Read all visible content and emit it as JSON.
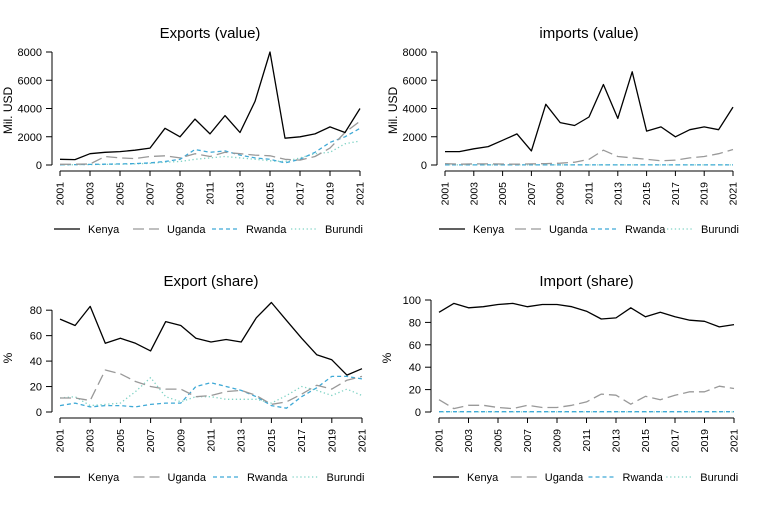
{
  "figure": {
    "legend_labels": [
      "Kenya",
      "Uganda",
      "Rwanda",
      "Burundi"
    ]
  },
  "series_styles": [
    {
      "name": "Kenya",
      "color": "#000000",
      "dash": "solid"
    },
    {
      "name": "Uganda",
      "color": "#999999",
      "dash": "longdash"
    },
    {
      "name": "Rwanda",
      "color": "#3fa9d6",
      "dash": "dashed"
    },
    {
      "name": "Burundi",
      "color": "#7fd3c5",
      "dash": "dotted"
    }
  ],
  "chart_data": [
    {
      "type": "line",
      "title": "Exports (value)",
      "xlabel": "",
      "ylabel": "Mil. USD",
      "x": [
        2001,
        2002,
        2003,
        2004,
        2005,
        2006,
        2007,
        2008,
        2009,
        2010,
        2011,
        2012,
        2013,
        2014,
        2015,
        2016,
        2017,
        2018,
        2019,
        2020,
        2021
      ],
      "xticks": [
        "2001",
        "2003",
        "2005",
        "2007",
        "2009",
        "2011",
        "2013",
        "2015",
        "2017",
        "2019",
        "2021"
      ],
      "yticks": [
        "0",
        "2000",
        "4000",
        "6000",
        "8000"
      ],
      "ylim": [
        0,
        8000
      ],
      "grid": false,
      "legend": "bottom",
      "series": [
        {
          "name": "Kenya",
          "values": [
            400,
            380,
            800,
            900,
            950,
            1050,
            1200,
            2600,
            2000,
            3250,
            2200,
            3500,
            2300,
            4500,
            8000,
            1900,
            2000,
            2200,
            2700,
            2300,
            4000
          ]
        },
        {
          "name": "Uganda",
          "values": [
            50,
            60,
            70,
            600,
            500,
            450,
            600,
            650,
            500,
            800,
            600,
            900,
            800,
            700,
            650,
            400,
            350,
            600,
            1200,
            2300,
            3100
          ]
        },
        {
          "name": "Rwanda",
          "values": [
            20,
            30,
            40,
            60,
            80,
            100,
            150,
            250,
            400,
            1100,
            900,
            1000,
            700,
            500,
            400,
            150,
            400,
            900,
            1600,
            2000,
            2600
          ]
        },
        {
          "name": "Burundi",
          "values": [
            10,
            20,
            30,
            40,
            60,
            80,
            120,
            200,
            250,
            400,
            500,
            600,
            500,
            400,
            300,
            250,
            500,
            800,
            900,
            1500,
            1700
          ]
        }
      ]
    },
    {
      "type": "line",
      "title": "imports (value)",
      "xlabel": "",
      "ylabel": "Mil. USD",
      "x": [
        2001,
        2002,
        2003,
        2004,
        2005,
        2006,
        2007,
        2008,
        2009,
        2010,
        2011,
        2012,
        2013,
        2014,
        2015,
        2016,
        2017,
        2018,
        2019,
        2020,
        2021
      ],
      "xticks": [
        "2001",
        "2003",
        "2005",
        "2007",
        "2009",
        "2011",
        "2013",
        "2015",
        "2017",
        "2019",
        "2021"
      ],
      "yticks": [
        "0",
        "2000",
        "4000",
        "6000",
        "8000"
      ],
      "ylim": [
        0,
        8000
      ],
      "grid": false,
      "legend": "bottom",
      "series": [
        {
          "name": "Kenya",
          "values": [
            950,
            950,
            1150,
            1300,
            1750,
            2200,
            1000,
            4300,
            3000,
            2800,
            3400,
            5700,
            3300,
            6600,
            2400,
            2700,
            2000,
            2500,
            2700,
            2500,
            4100
          ]
        },
        {
          "name": "Uganda",
          "values": [
            100,
            60,
            80,
            80,
            70,
            60,
            80,
            100,
            130,
            200,
            400,
            1050,
            600,
            500,
            400,
            300,
            350,
            500,
            600,
            800,
            1100
          ]
        },
        {
          "name": "Rwanda",
          "values": [
            10,
            10,
            10,
            10,
            10,
            10,
            10,
            10,
            10,
            10,
            10,
            10,
            10,
            10,
            10,
            10,
            10,
            10,
            10,
            10,
            10
          ]
        },
        {
          "name": "Burundi",
          "values": [
            5,
            5,
            5,
            5,
            5,
            5,
            5,
            5,
            5,
            5,
            5,
            5,
            5,
            5,
            5,
            5,
            5,
            5,
            5,
            5,
            5
          ]
        }
      ]
    },
    {
      "type": "line",
      "title": "Export (share)",
      "xlabel": "",
      "ylabel": "%",
      "x": [
        2001,
        2002,
        2003,
        2004,
        2005,
        2006,
        2007,
        2008,
        2009,
        2010,
        2011,
        2012,
        2013,
        2014,
        2015,
        2016,
        2017,
        2018,
        2019,
        2020,
        2021
      ],
      "xticks": [
        "2001",
        "2003",
        "2005",
        "2007",
        "2009",
        "2011",
        "2013",
        "2015",
        "2017",
        "2019",
        "2021"
      ],
      "yticks": [
        "0",
        "20",
        "40",
        "60",
        "80"
      ],
      "ylim": [
        0,
        88
      ],
      "grid": false,
      "legend": "bottom",
      "series": [
        {
          "name": "Kenya",
          "values": [
            73,
            68,
            83,
            54,
            58,
            54,
            48,
            71,
            68,
            58,
            55,
            57,
            55,
            74,
            86,
            72,
            58,
            45,
            41,
            29,
            34
          ]
        },
        {
          "name": "Uganda",
          "values": [
            11,
            11,
            9,
            33,
            30,
            24,
            20,
            18,
            18,
            12,
            13,
            16,
            17,
            13,
            6,
            8,
            14,
            21,
            18,
            25,
            28
          ]
        },
        {
          "name": "Rwanda",
          "values": [
            5,
            7,
            4,
            5,
            5,
            4,
            6,
            7,
            7,
            20,
            23,
            20,
            17,
            12,
            5,
            3,
            12,
            19,
            28,
            28,
            26
          ]
        },
        {
          "name": "Burundi",
          "values": [
            11,
            12,
            5,
            6,
            7,
            16,
            27,
            12,
            8,
            12,
            12,
            10,
            10,
            10,
            7,
            13,
            20,
            17,
            13,
            18,
            13
          ]
        }
      ]
    },
    {
      "type": "line",
      "title": "Import (share)",
      "xlabel": "",
      "ylabel": "%",
      "x": [
        2001,
        2002,
        2003,
        2004,
        2005,
        2006,
        2007,
        2008,
        2009,
        2010,
        2011,
        2012,
        2013,
        2014,
        2015,
        2016,
        2017,
        2018,
        2019,
        2020,
        2021
      ],
      "xticks": [
        "2001",
        "2003",
        "2005",
        "2007",
        "2009",
        "2011",
        "2013",
        "2015",
        "2017",
        "2019",
        "2021"
      ],
      "yticks": [
        "0",
        "20",
        "40",
        "60",
        "80",
        "100"
      ],
      "ylim": [
        0,
        100
      ],
      "grid": false,
      "legend": "bottom",
      "series": [
        {
          "name": "Kenya",
          "values": [
            89,
            97,
            93,
            94,
            96,
            97,
            94,
            96,
            96,
            94,
            90,
            83,
            84,
            93,
            85,
            89,
            85,
            82,
            81,
            76,
            78
          ]
        },
        {
          "name": "Uganda",
          "values": [
            11,
            3,
            6,
            6,
            4,
            3,
            6,
            4,
            4,
            6,
            9,
            16,
            15,
            7,
            14,
            11,
            15,
            18,
            18,
            23,
            21
          ]
        },
        {
          "name": "Rwanda",
          "values": [
            0.3,
            0.3,
            0.3,
            0.3,
            0.3,
            0.3,
            0.3,
            0.3,
            0.3,
            0.3,
            0.3,
            0.3,
            0.3,
            0.3,
            0.3,
            0.3,
            0.3,
            0.3,
            0.3,
            0.3,
            0.3
          ]
        },
        {
          "name": "Burundi",
          "values": [
            0.1,
            0.1,
            0.1,
            0.1,
            0.1,
            0.1,
            0.1,
            0.1,
            0.1,
            0.1,
            0.1,
            0.1,
            0.1,
            0.1,
            0.1,
            0.1,
            0.1,
            0.1,
            0.1,
            0.1,
            0.1
          ]
        }
      ]
    }
  ]
}
